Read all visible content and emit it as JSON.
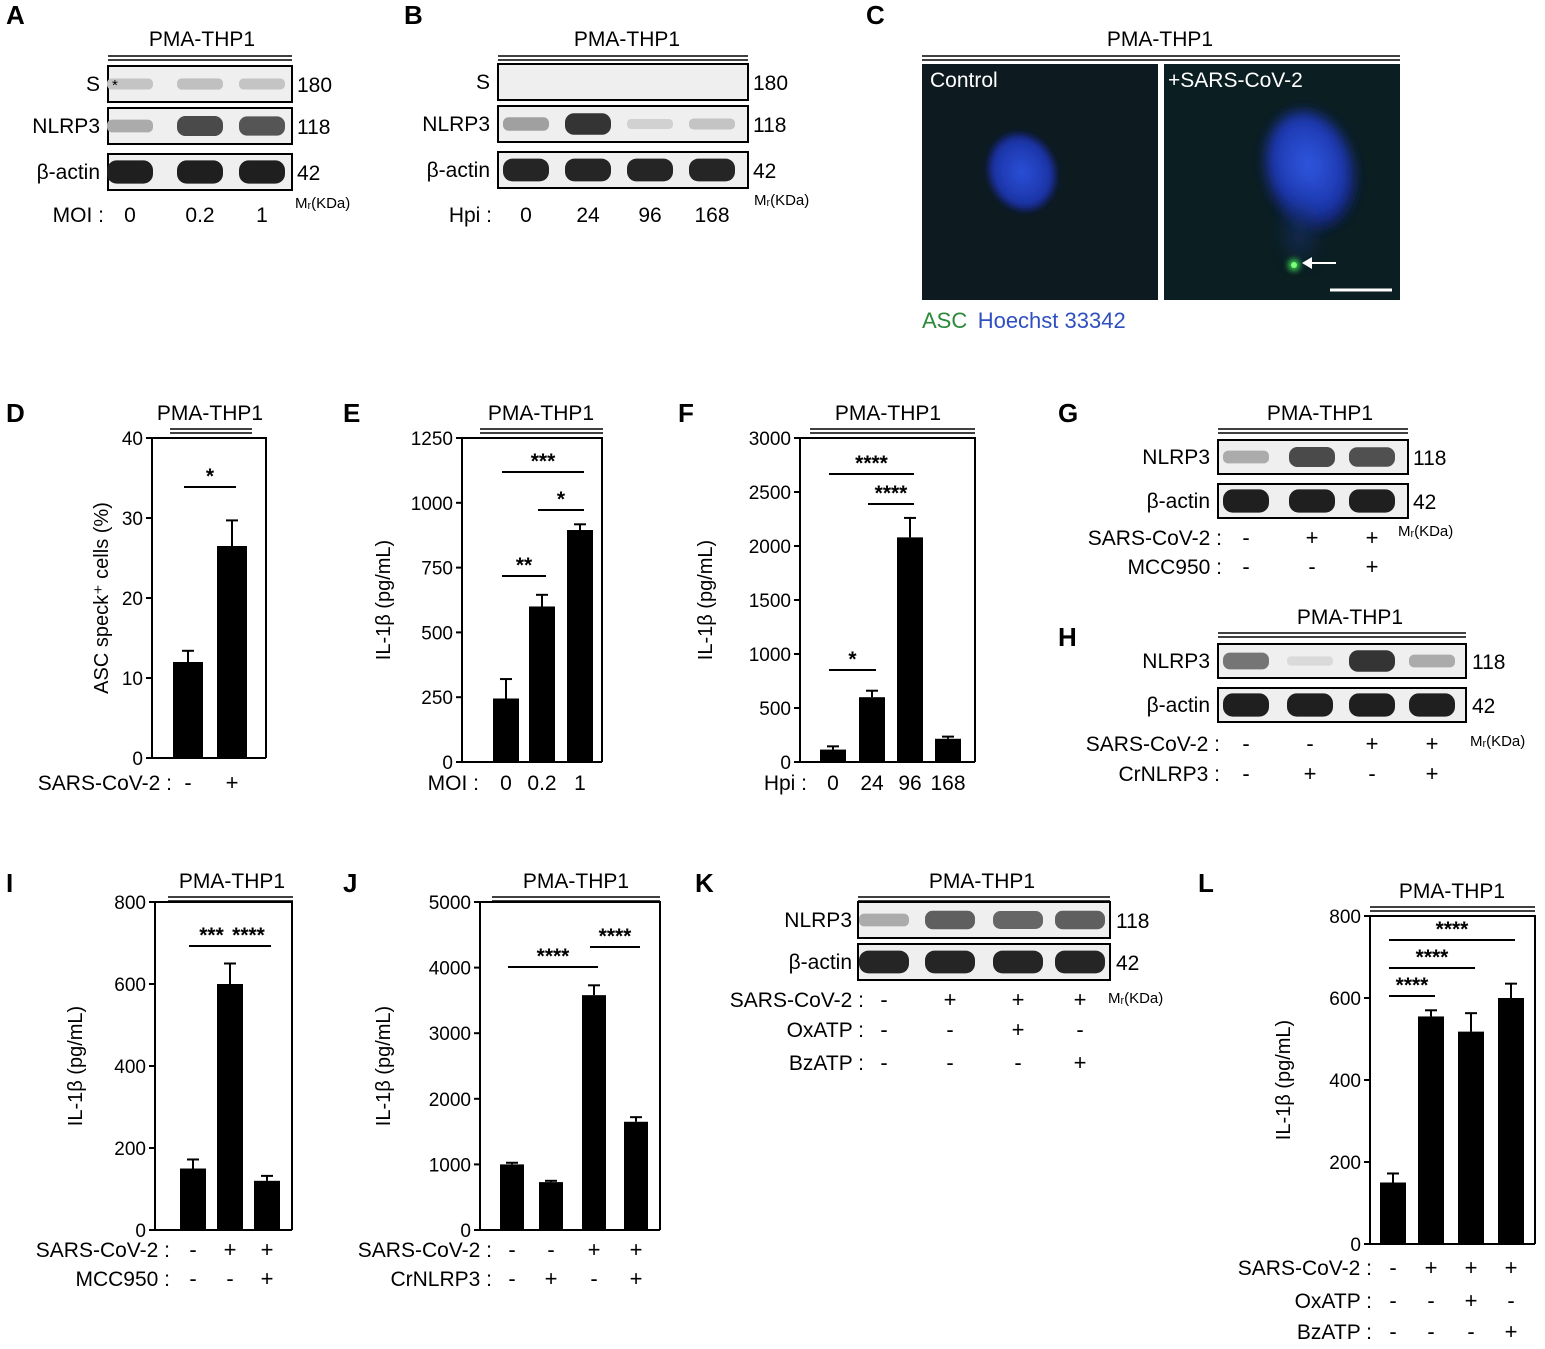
{
  "panel_letters": [
    "A",
    "B",
    "C",
    "D",
    "E",
    "F",
    "G",
    "H",
    "I",
    "J",
    "K",
    "L"
  ],
  "cell_line": "PMA-THP1",
  "mr_label": "Mᵣ(KDa)",
  "blots": {
    "A": {
      "rows": [
        {
          "label": "S",
          "mw": "180",
          "intensity": [
            0.18,
            0.2,
            0.18
          ],
          "asterisk": "*"
        },
        {
          "label": "NLRP3",
          "mw": "118",
          "intensity": [
            0.3,
            0.75,
            0.7
          ]
        },
        {
          "label": "β-actin",
          "mw": "42",
          "intensity": [
            0.95,
            0.95,
            0.95
          ]
        }
      ],
      "conditions": [
        {
          "label": "MOI :",
          "values": [
            "0",
            "0.2",
            "1"
          ]
        }
      ]
    },
    "B": {
      "rows": [
        {
          "label": "S",
          "mw": "180",
          "intensity": [
            0,
            0,
            0,
            0
          ]
        },
        {
          "label": "NLRP3",
          "mw": "118",
          "intensity": [
            0.35,
            0.85,
            0.12,
            0.18
          ]
        },
        {
          "label": "β-actin",
          "mw": "42",
          "intensity": [
            0.92,
            0.92,
            0.92,
            0.92
          ]
        }
      ],
      "conditions": [
        {
          "label": "Hpi :",
          "values": [
            "0",
            "24",
            "96",
            "168"
          ]
        }
      ]
    },
    "G": {
      "rows": [
        {
          "label": "NLRP3",
          "mw": "118",
          "intensity": [
            0.3,
            0.75,
            0.72
          ]
        },
        {
          "label": "β-actin",
          "mw": "42",
          "intensity": [
            0.95,
            0.95,
            0.95
          ]
        }
      ],
      "conditions": [
        {
          "label": "SARS-CoV-2 :",
          "values": [
            "-",
            "+",
            "+"
          ]
        },
        {
          "label": "MCC950 :",
          "values": [
            "-",
            "-",
            "+"
          ]
        }
      ]
    },
    "H": {
      "rows": [
        {
          "label": "NLRP3",
          "mw": "118",
          "intensity": [
            0.55,
            0.08,
            0.85,
            0.3
          ]
        },
        {
          "label": "β-actin",
          "mw": "42",
          "intensity": [
            0.95,
            0.95,
            0.95,
            0.95
          ]
        }
      ],
      "conditions": [
        {
          "label": "SARS-CoV-2 :",
          "values": [
            "-",
            "-",
            "+",
            "+"
          ]
        },
        {
          "label": "CrNLRP3 :",
          "values": [
            "-",
            "+",
            "-",
            "+"
          ]
        }
      ]
    },
    "K": {
      "rows": [
        {
          "label": "NLRP3",
          "mw": "118",
          "intensity": [
            0.3,
            0.65,
            0.62,
            0.65
          ]
        },
        {
          "label": "β-actin",
          "mw": "42",
          "intensity": [
            0.92,
            0.92,
            0.92,
            0.92
          ]
        }
      ],
      "conditions": [
        {
          "label": "SARS-CoV-2 :",
          "values": [
            "-",
            "+",
            "+",
            "+"
          ]
        },
        {
          "label": "OxATP :",
          "values": [
            "-",
            "-",
            "+",
            "-"
          ]
        },
        {
          "label": "BzATP :",
          "values": [
            "-",
            "-",
            "-",
            "+"
          ]
        }
      ]
    }
  },
  "micrograph": {
    "control_label": "Control",
    "infected_label": "+SARS-CoV-2",
    "legend_asc": "ASC",
    "legend_hoechst": "Hoechst 33342"
  },
  "chart_data": [
    {
      "panel": "D",
      "type": "bar",
      "ylabel": "ASC speck⁺ cells (%)",
      "ylim": [
        0,
        40
      ],
      "yticks": [
        0,
        10,
        20,
        30,
        40
      ],
      "values": [
        12,
        26.5
      ],
      "errors": [
        1.4,
        3.2
      ],
      "conditions": [
        {
          "label": "SARS-CoV-2 :",
          "values": [
            "-",
            "+"
          ]
        }
      ],
      "significance": [
        {
          "from": 0,
          "to": 1,
          "label": "*"
        }
      ]
    },
    {
      "panel": "E",
      "type": "bar",
      "ylabel": "IL-1β (pg/mL)",
      "ylim": [
        0,
        1250
      ],
      "yticks": [
        0,
        250,
        500,
        750,
        1000,
        1250
      ],
      "values": [
        245,
        600,
        895
      ],
      "errors": [
        75,
        45,
        22
      ],
      "conditions": [
        {
          "label": "MOI :",
          "values": [
            "0",
            "0.2",
            "1"
          ]
        }
      ],
      "significance": [
        {
          "from": 0,
          "to": 2,
          "label": "***"
        },
        {
          "from": 1,
          "to": 2,
          "label": "*"
        },
        {
          "from": 0,
          "to": 1,
          "label": "**"
        }
      ]
    },
    {
      "panel": "F",
      "type": "bar",
      "ylabel": "IL-1β (pg/mL)",
      "ylim": [
        0,
        3000
      ],
      "yticks": [
        0,
        500,
        1000,
        1500,
        2000,
        2500,
        3000
      ],
      "values": [
        115,
        600,
        2080,
        215
      ],
      "errors": [
        30,
        60,
        180,
        20
      ],
      "conditions": [
        {
          "label": "Hpi :",
          "values": [
            "0",
            "24",
            "96",
            "168"
          ]
        }
      ],
      "significance": [
        {
          "from": 0,
          "to": 2,
          "label": "****"
        },
        {
          "from": 1,
          "to": 2,
          "label": "****"
        },
        {
          "from": 0,
          "to": 1,
          "label": "*"
        }
      ]
    },
    {
      "panel": "I",
      "type": "bar",
      "ylabel": "IL-1β (pg/mL)",
      "ylim": [
        0,
        800
      ],
      "yticks": [
        0,
        200,
        400,
        600,
        800
      ],
      "values": [
        150,
        600,
        120
      ],
      "errors": [
        22,
        50,
        12
      ],
      "conditions": [
        {
          "label": "SARS-CoV-2 :",
          "values": [
            "-",
            "+",
            "+"
          ]
        },
        {
          "label": "MCC950 :",
          "values": [
            "-",
            "-",
            "+"
          ]
        }
      ],
      "significance": [
        {
          "from": 0,
          "to": 1,
          "label": "***"
        },
        {
          "from": 1,
          "to": 2,
          "label": "****"
        }
      ]
    },
    {
      "panel": "J",
      "type": "bar",
      "ylabel": "IL-1β (pg/mL)",
      "ylim": [
        0,
        5000
      ],
      "yticks": [
        0,
        1000,
        2000,
        3000,
        4000,
        5000
      ],
      "values": [
        1000,
        730,
        3580,
        1650
      ],
      "errors": [
        25,
        20,
        150,
        70
      ],
      "conditions": [
        {
          "label": "SARS-CoV-2 :",
          "values": [
            "-",
            "-",
            "+",
            "+"
          ]
        },
        {
          "label": "CrNLRP3 :",
          "values": [
            "-",
            "+",
            "-",
            "+"
          ]
        }
      ],
      "significance": [
        {
          "from": 0,
          "to": 2,
          "label": "****"
        },
        {
          "from": 2,
          "to": 3,
          "label": "****"
        }
      ]
    },
    {
      "panel": "L",
      "type": "bar",
      "ylabel": "IL-1β (pg/mL)",
      "ylim": [
        0,
        800
      ],
      "yticks": [
        0,
        200,
        400,
        600,
        800
      ],
      "values": [
        150,
        555,
        518,
        600
      ],
      "errors": [
        22,
        15,
        45,
        35
      ],
      "conditions": [
        {
          "label": "SARS-CoV-2 :",
          "values": [
            "-",
            "+",
            "+",
            "+"
          ]
        },
        {
          "label": "OxATP :",
          "values": [
            "-",
            "-",
            "+",
            "-"
          ]
        },
        {
          "label": "BzATP :",
          "values": [
            "-",
            "-",
            "-",
            "+"
          ]
        }
      ],
      "significance": [
        {
          "from": 0,
          "to": 3,
          "label": "****"
        },
        {
          "from": 0,
          "to": 2,
          "label": "****"
        },
        {
          "from": 0,
          "to": 1,
          "label": "****"
        }
      ]
    }
  ]
}
